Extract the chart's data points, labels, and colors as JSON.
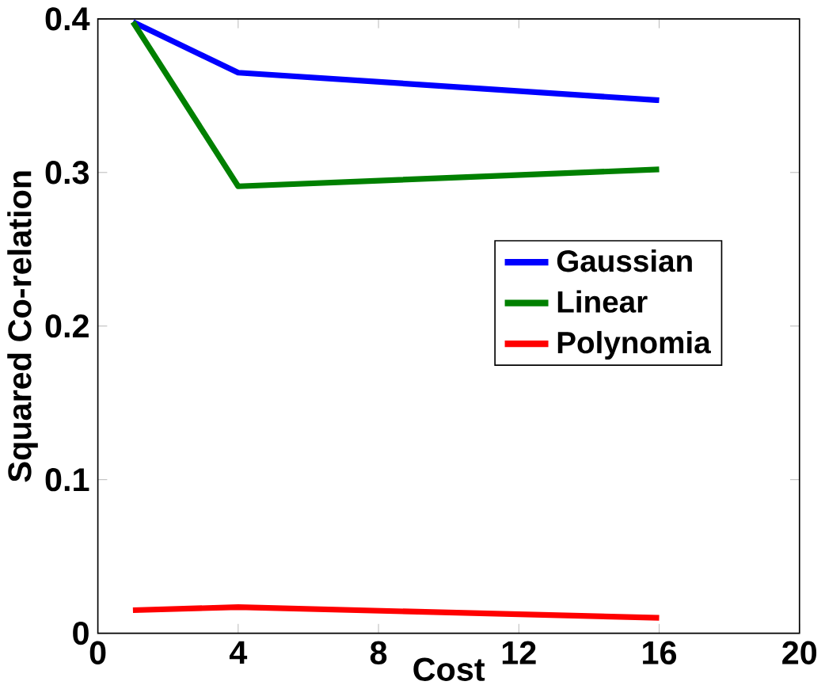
{
  "chart_data": {
    "type": "line",
    "xlabel": "Cost",
    "ylabel": "Squared Co-relation",
    "x": [
      1,
      4,
      16
    ],
    "series": [
      {
        "name": "Gaussian",
        "color": "#0000ff",
        "values": [
          0.398,
          0.365,
          0.347
        ]
      },
      {
        "name": "Linear",
        "color": "#008000",
        "values": [
          0.398,
          0.291,
          0.302
        ]
      },
      {
        "name": "Polynomia",
        "color": "#ff0000",
        "values": [
          0.015,
          0.017,
          0.01
        ]
      }
    ],
    "xlim": [
      0,
      20
    ],
    "xticks": [
      0,
      4,
      8,
      12,
      16,
      20
    ],
    "ylim": [
      0,
      0.4
    ],
    "yticks": [
      0,
      0.1,
      0.2,
      0.3,
      0.4
    ],
    "legend": "right",
    "grid": false,
    "marker": "none",
    "line_style": "solid"
  }
}
